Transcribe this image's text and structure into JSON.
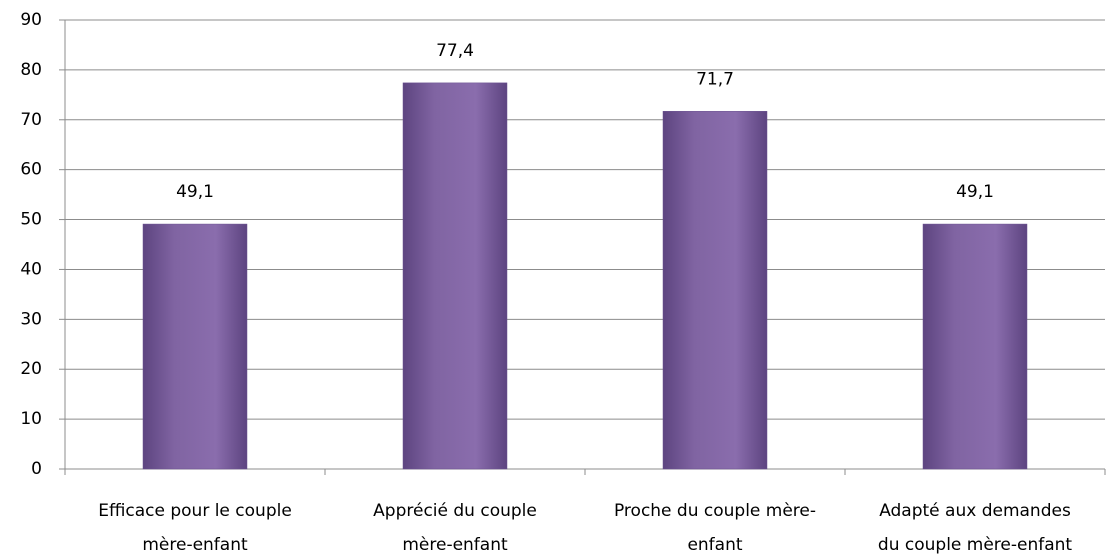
{
  "chart_data": {
    "type": "bar",
    "categories": [
      [
        "Efficace pour le couple",
        "mère-enfant"
      ],
      [
        "Apprécié du couple",
        "mère-enfant"
      ],
      [
        "Proche du couple mère-",
        "enfant"
      ],
      [
        "Adapté aux demandes",
        "du couple mère-enfant"
      ]
    ],
    "values": [
      49.1,
      77.4,
      71.7,
      49.1
    ],
    "value_labels": [
      "49,1",
      "77,4",
      "71,7",
      "49,1"
    ],
    "color": "#8064a2",
    "ylim": [
      0,
      90
    ],
    "yticks": [
      0,
      10,
      20,
      30,
      40,
      50,
      60,
      70,
      80,
      90
    ],
    "grid": true
  }
}
